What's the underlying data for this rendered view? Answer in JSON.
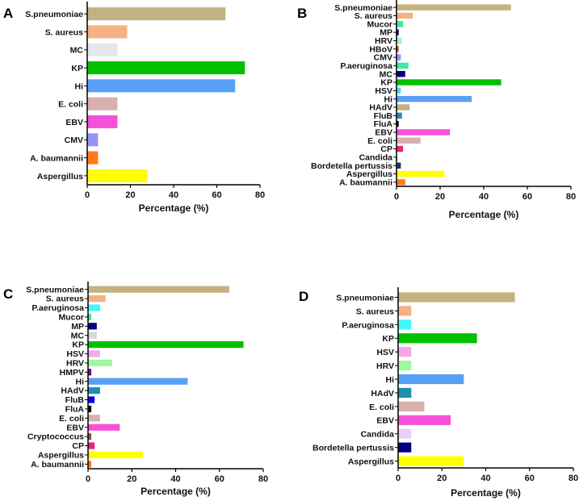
{
  "chart_data": [
    {
      "type": "bar",
      "panel": "A",
      "orientation": "horizontal",
      "xlabel": "Percentage (%)",
      "xlim": [
        0,
        80
      ],
      "xticks": [
        0,
        20,
        40,
        60,
        80
      ],
      "categories": [
        "S.pneumoniae",
        "S. aureus",
        "MC",
        "KP",
        "Hi",
        "E. coli",
        "EBV",
        "CMV",
        "A. baumannii",
        "Aspergillus"
      ],
      "values": [
        64,
        18.5,
        14,
        73,
        68.5,
        14,
        14,
        5,
        5,
        28
      ],
      "colors": [
        "#c2b280",
        "#f4b183",
        "#e6e6e6",
        "#00c000",
        "#58a0f6",
        "#d8b0b0",
        "#f550d8",
        "#9494f8",
        "#ff7b1a",
        "#ffff00"
      ]
    },
    {
      "type": "bar",
      "panel": "B",
      "orientation": "horizontal",
      "xlabel": "Percentage (%)",
      "xlim": [
        0,
        80
      ],
      "xticks": [
        0,
        20,
        40,
        60,
        80
      ],
      "categories": [
        "S.pneumoniae",
        "S. aureus",
        "Mucor",
        "MP",
        "HRV",
        "HBoV",
        "CMV",
        "P.aeruginosa",
        "MC",
        "KP",
        "HSV",
        "Hi",
        "HAdV",
        "FluB",
        "FluA",
        "EBV",
        "E. coli",
        "CP",
        "Candida",
        "Bordetella pertussis",
        "Aspergillus",
        "A. baumannii"
      ],
      "values": [
        52.5,
        7.5,
        3,
        1,
        2.5,
        1,
        2,
        5.5,
        4,
        48,
        2,
        34.5,
        6,
        2.5,
        1,
        24.5,
        11,
        3,
        0.5,
        2,
        22,
        4
      ],
      "colors": [
        "#c2b280",
        "#f4b183",
        "#40e8a0",
        "#000080",
        "#a8f0c8",
        "#e04040",
        "#9494f8",
        "#40e8a0",
        "#000080",
        "#00c000",
        "#40e0f8",
        "#58a0f6",
        "#c2b280",
        "#2090a8",
        "#000000",
        "#f550d8",
        "#d8b0b0",
        "#f0207a",
        "#e8d0f8",
        "#104060",
        "#ffff00",
        "#ff7b1a"
      ]
    },
    {
      "type": "bar",
      "panel": "C",
      "orientation": "horizontal",
      "xlabel": "Percentage (%)",
      "xlim": [
        0,
        80
      ],
      "xticks": [
        0,
        20,
        40,
        60,
        80
      ],
      "categories": [
        "S.pneumoniae",
        "S. aureus",
        "P.aeruginosa",
        "Mucor",
        "MP",
        "MC",
        "KP",
        "HSV",
        "HRV",
        "HMPV",
        "Hi",
        "HAdV",
        "FluB",
        "FluA",
        "E. coli",
        "EBV",
        "Cryptococcus",
        "CP",
        "Aspergillus",
        "A. baumannii"
      ],
      "values": [
        64.5,
        8,
        5.5,
        1.5,
        4,
        4,
        71,
        5.5,
        11,
        1.5,
        45.5,
        5.5,
        3,
        1.5,
        5.5,
        14.5,
        1.5,
        3,
        25,
        1.5
      ],
      "colors": [
        "#c2b280",
        "#f4b183",
        "#40f8f8",
        "#40e8a0",
        "#000080",
        "#d8d8d8",
        "#00c000",
        "#f4a8e8",
        "#a0f8a0",
        "#800080",
        "#58a0f6",
        "#2090b0",
        "#0000f0",
        "#000000",
        "#d8b0b0",
        "#f550d8",
        "#8b5a2b",
        "#f0207a",
        "#ffff00",
        "#ff7b1a"
      ]
    },
    {
      "type": "bar",
      "panel": "D",
      "orientation": "horizontal",
      "xlabel": "Percentage (%)",
      "xlim": [
        0,
        80
      ],
      "xticks": [
        0,
        20,
        40,
        60,
        80
      ],
      "categories": [
        "S.pneumoniae",
        "S. aureus",
        "P.aeruginosa",
        "KP",
        "HSV",
        "HRV",
        "Hi",
        "HAdV",
        "E. coli",
        "EBV",
        "Candida",
        "Bordetella pertussis",
        "Aspergillus"
      ],
      "values": [
        53.3,
        6,
        6,
        36,
        6,
        6,
        30,
        6,
        12,
        24,
        6,
        6,
        30
      ],
      "colors": [
        "#c2b280",
        "#f4b183",
        "#40f8f8",
        "#00c000",
        "#f4a8e8",
        "#a0f8a0",
        "#58a0f6",
        "#2090b0",
        "#d8b0b0",
        "#f550d8",
        "#e8d0f8",
        "#000080",
        "#ffff00"
      ]
    }
  ]
}
